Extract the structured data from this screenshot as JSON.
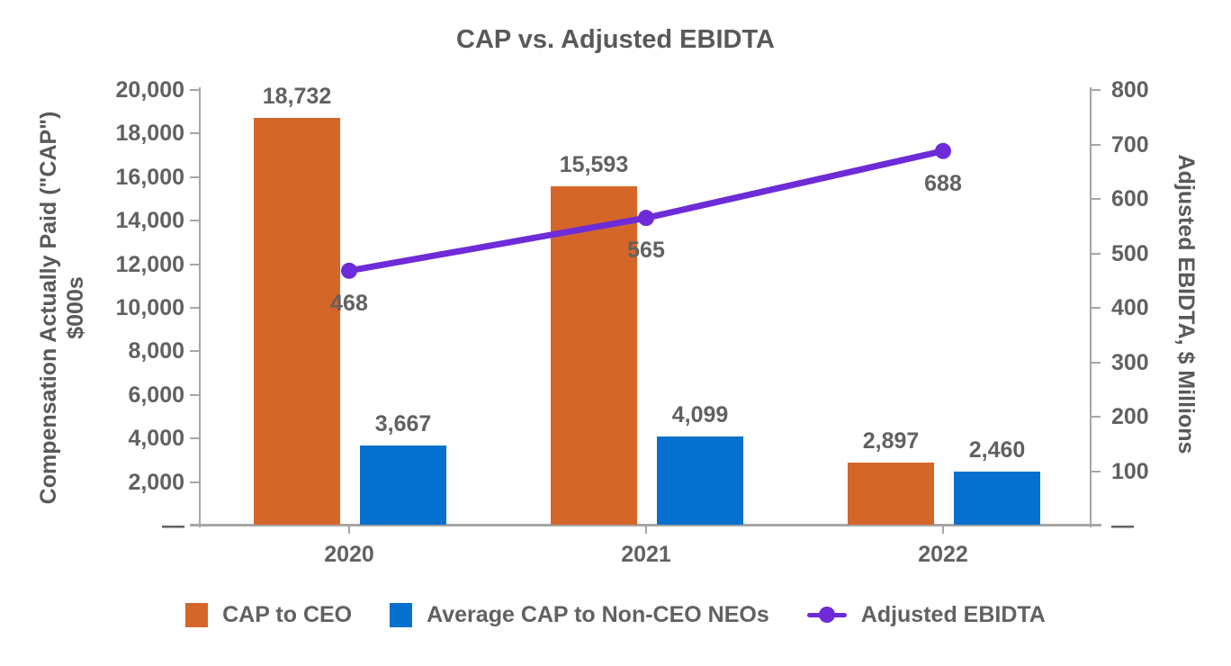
{
  "chart_data": {
    "type": "combo-bar-line",
    "title": "CAP vs. Adjusted EBIDTA",
    "categories": [
      "2020",
      "2021",
      "2022"
    ],
    "series": [
      {
        "name": "CAP to CEO",
        "slug": "cap-to-ceo",
        "type": "bar",
        "axis": "left",
        "color": "#D5662A",
        "values": [
          18732,
          15593,
          2897
        ],
        "labels": [
          "18,732",
          "15,593",
          "2,897"
        ]
      },
      {
        "name": "Average CAP to Non-CEO NEOs",
        "slug": "avg-cap-to-non-ceo-neos",
        "type": "bar",
        "axis": "left",
        "color": "#0670CE",
        "values": [
          3667,
          4099,
          2460
        ],
        "labels": [
          "3,667",
          "4,099",
          "2,460"
        ]
      },
      {
        "name": "Adjusted EBIDTA",
        "slug": "adjusted-ebidta",
        "type": "line",
        "axis": "right",
        "color": "#6E2BD8",
        "values": [
          468,
          565,
          688
        ],
        "labels": [
          "468",
          "565",
          "688"
        ]
      }
    ],
    "left_axis": {
      "title_line1": "Compensation Actually Paid (\"CAP\")",
      "title_line2": "$000s",
      "min": 0,
      "max": 20000,
      "tick_interval": 2000,
      "tick_labels": [
        "20,000",
        "18,000",
        "16,000",
        "14,000",
        "12,000",
        "10,000",
        "8,000",
        "6,000",
        "4,000",
        "2,000",
        "—"
      ]
    },
    "right_axis": {
      "title": "Adjusted EBIDTA, $ Millions",
      "min": 0,
      "max": 800,
      "tick_interval": 100,
      "tick_labels": [
        "800",
        "700",
        "600",
        "500",
        "400",
        "300",
        "200",
        "100",
        "—"
      ]
    },
    "legend_position": "bottom",
    "grid": false,
    "colors": {
      "text": "#616161",
      "title_text": "#595959",
      "axis_line": "#a6a6a6"
    }
  }
}
